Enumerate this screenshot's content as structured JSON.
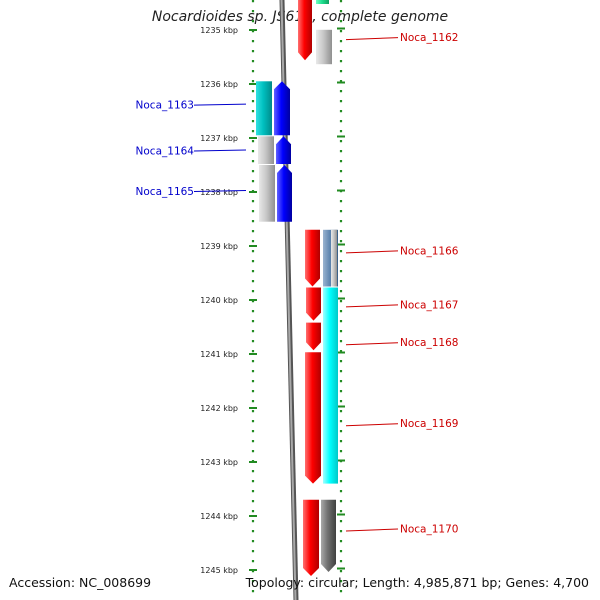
{
  "title": "Nocardioides sp. JS614, complete genome",
  "accession": "Accession: NC_008699",
  "summary": "Topology: circular; Length: 4,985,871 bp; Genes: 4,700",
  "colors": {
    "forward_label": "#cc0000",
    "reverse_label": "#0000cc",
    "tick": "#228b22",
    "backbone": "#888888"
  },
  "axis": {
    "ticks": [
      {
        "kbp": 1235,
        "label": "1235 kbp"
      },
      {
        "kbp": 1236,
        "label": "1236 kbp"
      },
      {
        "kbp": 1237,
        "label": "1237 kbp"
      },
      {
        "kbp": 1238,
        "label": "1238 kbp"
      },
      {
        "kbp": 1239,
        "label": "1239 kbp"
      },
      {
        "kbp": 1240,
        "label": "1240 kbp"
      },
      {
        "kbp": 1241,
        "label": "1241 kbp"
      },
      {
        "kbp": 1242,
        "label": "1242 kbp"
      },
      {
        "kbp": 1243,
        "label": "1243 kbp"
      },
      {
        "kbp": 1244,
        "label": "1244 kbp"
      },
      {
        "kbp": 1245,
        "label": "1245 kbp"
      }
    ]
  },
  "genes": [
    {
      "name": "Noca_1162",
      "strand": "forward",
      "start": 1234.7,
      "end": 1235.3,
      "label_kbp": 1235.15
    },
    {
      "name": "Noca_1163",
      "strand": "reverse",
      "start": 1235.95,
      "end": 1236.95,
      "label_kbp": 1236.4
    },
    {
      "name": "Noca_1164",
      "strand": "reverse",
      "start": 1236.95,
      "end": 1237.5,
      "label_kbp": 1237.25
    },
    {
      "name": "Noca_1165",
      "strand": "reverse",
      "start": 1237.5,
      "end": 1238.55,
      "label_kbp": 1238.0
    },
    {
      "name": "Noca_1166",
      "strand": "forward",
      "start": 1238.7,
      "end": 1239.75,
      "label_kbp": 1239.1
    },
    {
      "name": "Noca_1167",
      "strand": "forward",
      "start": 1239.75,
      "end": 1240.4,
      "label_kbp": 1240.1
    },
    {
      "name": "Noca_1168",
      "strand": "forward",
      "start": 1240.4,
      "end": 1240.95,
      "label_kbp": 1240.8
    },
    {
      "name": "Noca_1169",
      "strand": "forward",
      "start": 1240.95,
      "end": 1243.4,
      "label_kbp": 1242.3
    },
    {
      "name": "Noca_1170",
      "strand": "forward",
      "start": 1243.7,
      "end": 1245.0,
      "label_kbp": 1244.25
    }
  ]
}
